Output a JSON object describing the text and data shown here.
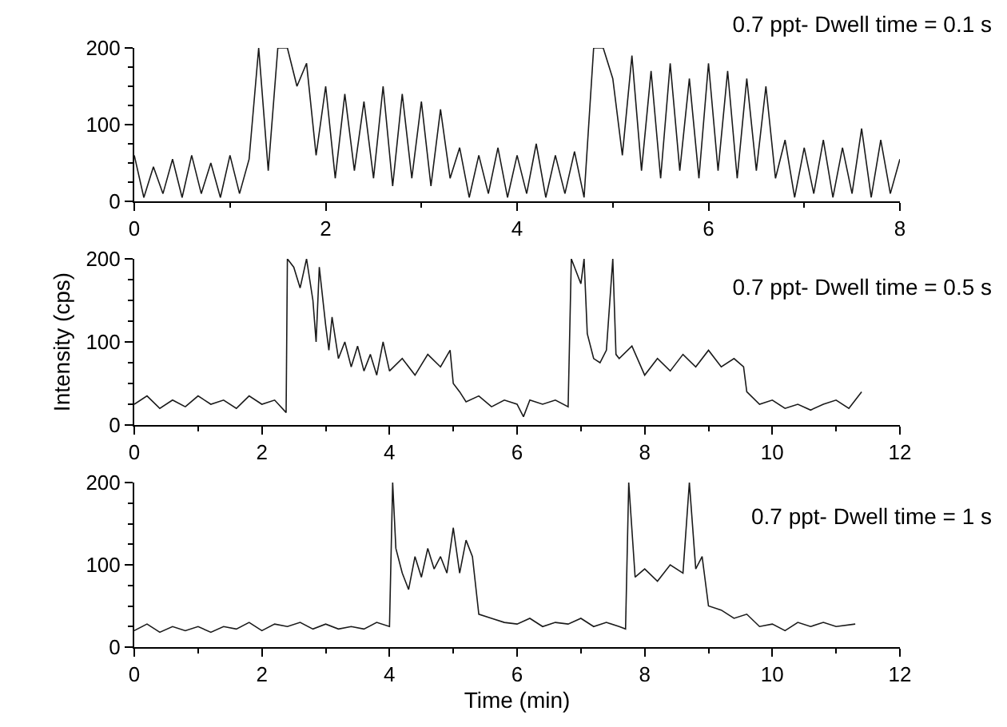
{
  "chart_data": [
    {
      "type": "line",
      "title": "0.7 ppt- Dwell time = 0.1 s",
      "xlim": [
        0,
        8
      ],
      "xticks": [
        0,
        2,
        4,
        6,
        8
      ],
      "ylim": [
        0,
        200
      ],
      "yticks": [
        0,
        100,
        200
      ],
      "color": "#1a1a1a",
      "x": [
        0,
        0.1,
        0.2,
        0.3,
        0.4,
        0.5,
        0.6,
        0.7,
        0.8,
        0.9,
        1.0,
        1.1,
        1.2,
        1.3,
        1.4,
        1.5,
        1.6,
        1.7,
        1.8,
        1.9,
        2.0,
        2.1,
        2.2,
        2.3,
        2.4,
        2.5,
        2.6,
        2.7,
        2.8,
        2.9,
        3.0,
        3.1,
        3.2,
        3.3,
        3.4,
        3.5,
        3.6,
        3.7,
        3.8,
        3.9,
        4.0,
        4.1,
        4.2,
        4.3,
        4.4,
        4.5,
        4.6,
        4.7,
        4.8,
        4.9,
        5.0,
        5.1,
        5.2,
        5.3,
        5.4,
        5.5,
        5.6,
        5.7,
        5.8,
        5.9,
        6.0,
        6.1,
        6.2,
        6.3,
        6.4,
        6.5,
        6.6,
        6.7,
        6.8,
        6.9,
        7.0,
        7.1,
        7.2,
        7.3,
        7.4,
        7.5,
        7.6,
        7.7,
        7.8,
        7.9,
        8.0
      ],
      "values": [
        60,
        5,
        45,
        10,
        55,
        5,
        60,
        10,
        50,
        5,
        60,
        10,
        55,
        200,
        40,
        200,
        200,
        150,
        180,
        60,
        150,
        30,
        140,
        40,
        130,
        30,
        150,
        20,
        140,
        30,
        130,
        20,
        120,
        30,
        70,
        5,
        60,
        10,
        70,
        5,
        60,
        10,
        75,
        5,
        60,
        10,
        65,
        5,
        200,
        200,
        160,
        60,
        190,
        40,
        170,
        30,
        180,
        40,
        160,
        30,
        180,
        40,
        170,
        30,
        160,
        40,
        150,
        30,
        80,
        5,
        70,
        10,
        80,
        5,
        70,
        10,
        95,
        5,
        80,
        10,
        55
      ]
    },
    {
      "type": "line",
      "title": "0.7 ppt- Dwell time = 0.5 s",
      "ylabel": "Intensity (cps)",
      "xlim": [
        0,
        12
      ],
      "xticks": [
        0,
        2,
        4,
        6,
        8,
        10,
        12
      ],
      "ylim": [
        0,
        200
      ],
      "yticks": [
        0,
        100,
        200
      ],
      "color": "#1a1a1a",
      "x": [
        0,
        0.2,
        0.4,
        0.6,
        0.8,
        1.0,
        1.2,
        1.4,
        1.6,
        1.8,
        2.0,
        2.2,
        2.38,
        2.4,
        2.5,
        2.6,
        2.7,
        2.8,
        2.85,
        2.9,
        3.0,
        3.05,
        3.1,
        3.2,
        3.3,
        3.4,
        3.5,
        3.6,
        3.7,
        3.8,
        3.9,
        4.0,
        4.2,
        4.4,
        4.6,
        4.8,
        4.95,
        5.0,
        5.1,
        5.2,
        5.4,
        5.6,
        5.8,
        6.0,
        6.1,
        6.2,
        6.4,
        6.6,
        6.8,
        6.85,
        7.0,
        7.05,
        7.1,
        7.2,
        7.3,
        7.4,
        7.5,
        7.55,
        7.6,
        7.8,
        8.0,
        8.2,
        8.4,
        8.6,
        8.8,
        9.0,
        9.2,
        9.4,
        9.55,
        9.6,
        9.8,
        10.0,
        10.2,
        10.4,
        10.6,
        10.8,
        11.0,
        11.2,
        11.4
      ],
      "values": [
        25,
        35,
        20,
        30,
        22,
        35,
        25,
        30,
        20,
        35,
        25,
        30,
        15,
        200,
        190,
        165,
        200,
        150,
        100,
        190,
        120,
        90,
        130,
        80,
        100,
        70,
        95,
        65,
        85,
        60,
        100,
        65,
        80,
        60,
        85,
        70,
        90,
        50,
        40,
        28,
        35,
        22,
        30,
        25,
        10,
        30,
        25,
        30,
        22,
        200,
        170,
        200,
        110,
        80,
        75,
        90,
        200,
        85,
        80,
        95,
        60,
        80,
        65,
        85,
        70,
        90,
        70,
        80,
        70,
        40,
        25,
        30,
        20,
        25,
        18,
        25,
        30,
        20,
        40
      ]
    },
    {
      "type": "line",
      "title": "0.7 ppt- Dwell time = 1 s",
      "xlabel": "Time (min)",
      "xlim": [
        0,
        12
      ],
      "xticks": [
        0,
        2,
        4,
        6,
        8,
        10,
        12
      ],
      "ylim": [
        0,
        200
      ],
      "yticks": [
        0,
        100,
        200
      ],
      "color": "#1a1a1a",
      "x": [
        0,
        0.2,
        0.4,
        0.6,
        0.8,
        1.0,
        1.2,
        1.4,
        1.6,
        1.8,
        2.0,
        2.2,
        2.4,
        2.6,
        2.8,
        3.0,
        3.2,
        3.4,
        3.6,
        3.8,
        4.0,
        4.05,
        4.1,
        4.2,
        4.3,
        4.4,
        4.5,
        4.6,
        4.7,
        4.8,
        4.9,
        5.0,
        5.1,
        5.2,
        5.3,
        5.4,
        5.6,
        5.8,
        6.0,
        6.2,
        6.4,
        6.6,
        6.8,
        7.0,
        7.2,
        7.4,
        7.6,
        7.7,
        7.75,
        7.85,
        8.0,
        8.2,
        8.4,
        8.6,
        8.7,
        8.8,
        8.9,
        9.0,
        9.2,
        9.4,
        9.6,
        9.8,
        10.0,
        10.2,
        10.4,
        10.6,
        10.8,
        11.0,
        11.3
      ],
      "values": [
        20,
        28,
        18,
        25,
        20,
        25,
        18,
        25,
        22,
        30,
        20,
        28,
        25,
        30,
        22,
        28,
        22,
        25,
        22,
        30,
        25,
        200,
        120,
        90,
        70,
        110,
        85,
        120,
        95,
        110,
        90,
        145,
        90,
        130,
        110,
        40,
        35,
        30,
        28,
        35,
        25,
        30,
        28,
        35,
        25,
        30,
        25,
        22,
        200,
        85,
        95,
        80,
        100,
        90,
        200,
        95,
        110,
        50,
        45,
        35,
        40,
        25,
        28,
        20,
        30,
        25,
        30,
        25,
        28
      ]
    }
  ]
}
